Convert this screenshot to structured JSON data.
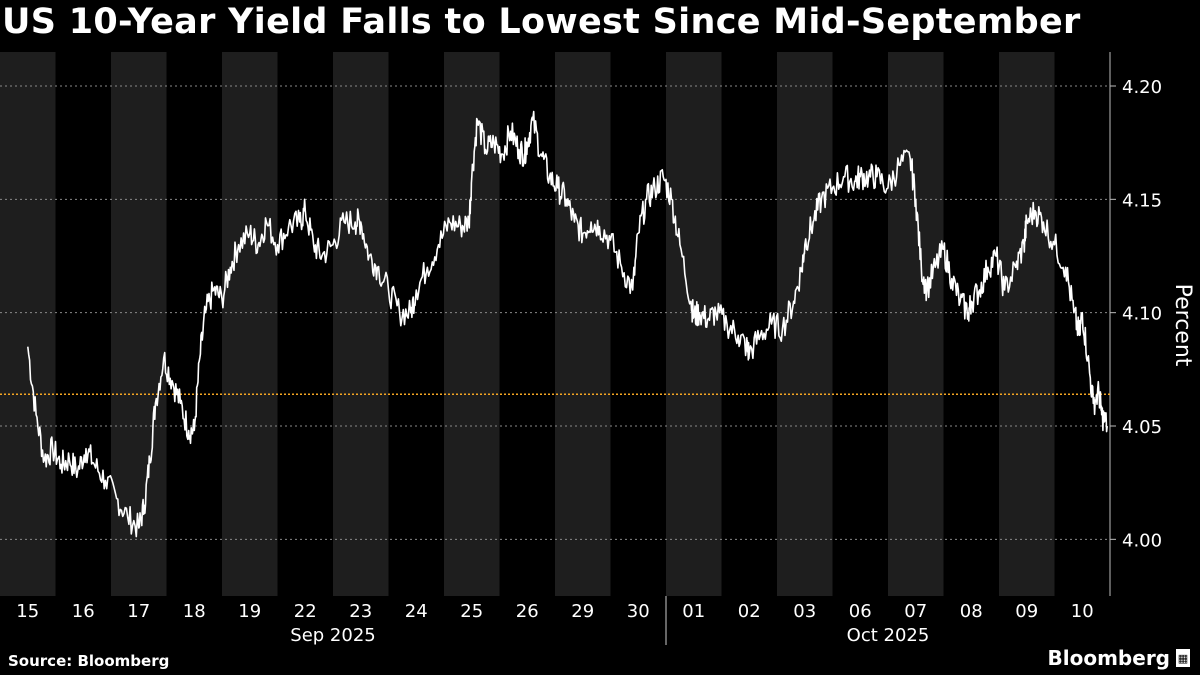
{
  "title": "US 10-Year Yield Falls to Lowest Since Mid-September",
  "source": "Source: Bloomberg",
  "brand": "Bloomberg",
  "brand_icon": "bloomberg-terminal-icon",
  "colors": {
    "background": "#000000",
    "band": "#1e1e1e",
    "line": "#ffffff",
    "reference_line": "#f5a623",
    "grid": "#8a8a8a"
  },
  "chart_data": {
    "type": "line",
    "ylabel": "Percent",
    "ylim": [
      3.975,
      4.215
    ],
    "yticks": [
      "4.00",
      "4.05",
      "4.10",
      "4.15",
      "4.20"
    ],
    "reference_line": 4.064,
    "days": [
      "15",
      "16",
      "17",
      "18",
      "19",
      "22",
      "23",
      "24",
      "25",
      "26",
      "29",
      "30",
      "01",
      "02",
      "03",
      "06",
      "07",
      "08",
      "09",
      "10"
    ],
    "month_groups": [
      {
        "label": "Sep 2025",
        "start": 0,
        "end": 11
      },
      {
        "label": "Oct 2025",
        "start": 12,
        "end": 19
      }
    ],
    "series": [
      {
        "x": [
          0.0,
          0.15,
          0.3,
          0.45,
          0.6,
          0.75,
          0.9,
          1.05,
          1.2,
          1.4,
          1.6,
          1.8,
          2.0,
          2.1,
          2.2,
          2.3,
          2.45,
          2.6,
          2.75,
          2.9,
          3.0,
          3.1,
          3.2,
          3.35,
          3.5,
          3.65,
          3.8,
          4.0,
          4.15,
          4.3,
          4.5,
          4.7,
          4.9,
          5.0,
          5.15,
          5.3,
          5.5,
          5.7,
          5.9,
          6.0,
          6.15,
          6.3,
          6.5,
          6.7,
          6.9,
          7.0,
          7.2,
          7.4,
          7.6,
          7.8,
          7.95,
          8.0,
          8.1,
          8.25,
          8.4,
          8.55,
          8.7,
          8.85,
          8.95,
          9.0,
          9.1,
          9.25,
          9.4,
          9.55,
          9.7,
          9.85,
          10.0,
          10.15,
          10.3,
          10.5,
          10.7,
          10.9,
          11.0,
          11.15,
          11.3,
          11.45,
          11.6,
          11.75,
          11.95,
          12.0,
          12.1,
          12.25,
          12.4,
          12.6,
          12.8,
          12.95,
          13.0,
          13.2,
          13.4,
          13.6,
          13.8,
          13.95,
          14.0,
          14.15,
          14.3,
          14.5,
          14.7,
          14.9,
          15.0,
          15.15,
          15.3,
          15.5,
          15.7,
          15.9,
          16.0,
          16.1,
          16.2,
          16.35,
          16.5,
          16.65,
          16.8,
          16.95,
          17.0,
          17.15,
          17.3,
          17.45,
          17.6,
          17.8,
          17.95,
          18.0,
          18.15,
          18.3,
          18.5,
          18.7,
          18.85,
          18.95,
          19.0,
          19.1,
          19.2,
          19.3,
          19.35,
          19.45
        ],
        "y": [
          4.085,
          4.055,
          4.035,
          4.04,
          4.033,
          4.035,
          4.03,
          4.04,
          4.033,
          4.026,
          4.018,
          4.01,
          4.005,
          4.015,
          4.035,
          4.06,
          4.08,
          4.07,
          4.06,
          4.048,
          4.048,
          4.08,
          4.1,
          4.11,
          4.106,
          4.12,
          4.13,
          4.135,
          4.13,
          4.14,
          4.13,
          4.138,
          4.14,
          4.145,
          4.13,
          4.125,
          4.13,
          4.14,
          4.14,
          4.14,
          4.125,
          4.12,
          4.11,
          4.1,
          4.1,
          4.11,
          4.12,
          4.13,
          4.14,
          4.138,
          4.14,
          4.16,
          4.185,
          4.172,
          4.175,
          4.17,
          4.18,
          4.172,
          4.17,
          4.175,
          4.185,
          4.17,
          4.16,
          4.155,
          4.15,
          4.14,
          4.135,
          4.14,
          4.138,
          4.132,
          4.12,
          4.11,
          4.135,
          4.15,
          4.155,
          4.16,
          4.15,
          4.13,
          4.105,
          4.098,
          4.1,
          4.097,
          4.1,
          4.095,
          4.09,
          4.085,
          4.082,
          4.09,
          4.095,
          4.093,
          4.105,
          4.12,
          4.13,
          4.14,
          4.15,
          4.155,
          4.16,
          4.158,
          4.16,
          4.16,
          4.16,
          4.155,
          4.165,
          4.168,
          4.15,
          4.12,
          4.11,
          4.12,
          4.128,
          4.115,
          4.105,
          4.1,
          4.105,
          4.11,
          4.12,
          4.125,
          4.11,
          4.12,
          4.13,
          4.14,
          4.145,
          4.14,
          4.13,
          4.12,
          4.1,
          4.09,
          4.1,
          4.08,
          4.06,
          4.065,
          4.055,
          4.05
        ]
      }
    ]
  }
}
